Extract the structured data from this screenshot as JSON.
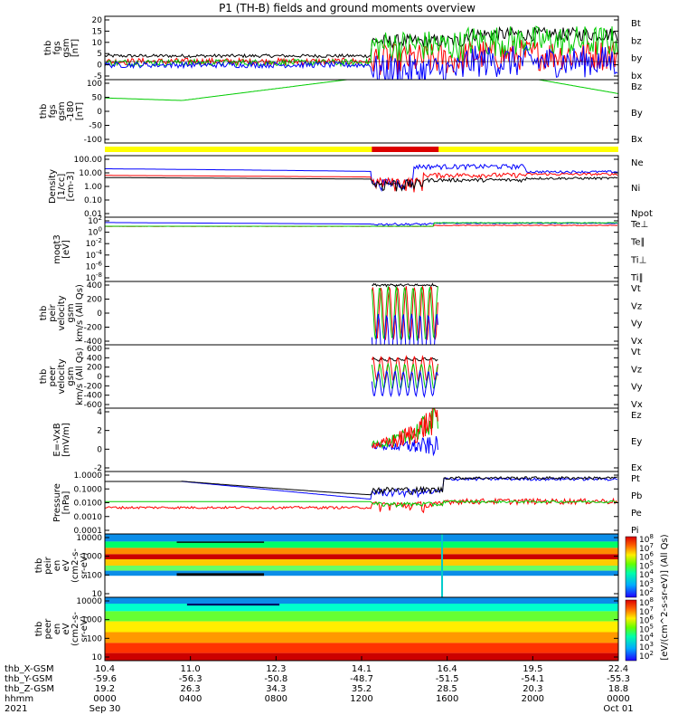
{
  "title": "P1 (TH-B) fields and ground moments overview",
  "colors": {
    "black": "#000000",
    "red": "#ff0000",
    "green": "#00cc00",
    "blue": "#0000ff",
    "yellow": "#ffff00",
    "bar_red": "#dd0000"
  },
  "chart_data": [
    {
      "id": "p1",
      "type": "line",
      "ylabel": [
        "thb",
        "fgs",
        "gsm",
        "[nT]"
      ],
      "yticks": [
        "20",
        "15",
        "10",
        "5",
        "0",
        "-5"
      ],
      "ylim": [
        -8,
        20
      ],
      "series": [
        {
          "name": "Bt",
          "color": "#000000"
        },
        {
          "name": "bz",
          "color": "#ff0000"
        },
        {
          "name": "by",
          "color": "#00cc00"
        },
        {
          "name": "bx",
          "color": "#0000ff"
        }
      ]
    },
    {
      "id": "p2",
      "type": "line",
      "ylabel": [
        "thb",
        "fgs",
        "gsm",
        "-180",
        "[nT]"
      ],
      "yticks": [
        "100",
        "50",
        "0",
        "-50",
        "-100"
      ],
      "ylim": [
        -125,
        100
      ],
      "series": [
        {
          "name": "Bz",
          "color": "#ff0000"
        },
        {
          "name": "By",
          "color": "#00cc00"
        },
        {
          "name": "Bx",
          "color": "#0000ff"
        }
      ]
    },
    {
      "id": "p3",
      "type": "line",
      "ylabel": [
        "Density",
        "[1/cc]",
        "[cm-3]"
      ],
      "yticks": [
        "100.00",
        "10.00",
        "1.00",
        "0.10",
        "0.01"
      ],
      "log": true,
      "series": [
        {
          "name": "Ne",
          "color": "#ff0000"
        },
        {
          "name": "Ni",
          "color": "#000000"
        },
        {
          "name": "Npot",
          "color": "#0000ff"
        }
      ]
    },
    {
      "id": "p4",
      "type": "line",
      "ylabel": [
        "moqt3",
        "[eV]"
      ],
      "yticks": [
        "10^2",
        "10^0",
        "10^-2",
        "10^-4",
        "10^-6",
        "10^-8"
      ],
      "log": true,
      "series": [
        {
          "name": "Te⊥",
          "color": "#ff0000"
        },
        {
          "name": "Te∥",
          "color": "#000000"
        },
        {
          "name": "Ti⊥",
          "color": "#00cc00"
        },
        {
          "name": "Ti∥",
          "color": "#00cc00"
        }
      ]
    },
    {
      "id": "p5",
      "type": "line",
      "ylabel": [
        "thb",
        "peir",
        "velocity",
        "gsm",
        "km/s (All Qs)"
      ],
      "yticks": [
        "400",
        "200",
        "0",
        "-200",
        "-400"
      ],
      "ylim": [
        -420,
        420
      ],
      "series": [
        {
          "name": "Vt",
          "color": "#000000"
        },
        {
          "name": "Vz",
          "color": "#ff0000"
        },
        {
          "name": "Vy",
          "color": "#00cc00"
        },
        {
          "name": "Vx",
          "color": "#0000ff"
        }
      ]
    },
    {
      "id": "p6",
      "type": "line",
      "ylabel": [
        "thb",
        "peer",
        "velocity",
        "gsm",
        "km/s (All Qs)"
      ],
      "yticks": [
        "600",
        "400",
        "200",
        "0",
        "-200",
        "-400",
        "-600"
      ],
      "ylim": [
        -650,
        650
      ],
      "series": [
        {
          "name": "Vt",
          "color": "#000000"
        },
        {
          "name": "Vz",
          "color": "#ff0000"
        },
        {
          "name": "Vy",
          "color": "#00cc00"
        },
        {
          "name": "Vx",
          "color": "#0000ff"
        }
      ]
    },
    {
      "id": "p7",
      "type": "line",
      "ylabel": [
        "E=-VxB",
        "[mV/m]"
      ],
      "yticks": [
        "4",
        "2",
        "0",
        "-2"
      ],
      "ylim": [
        -3,
        5
      ],
      "series": [
        {
          "name": "Ez",
          "color": "#ff0000"
        },
        {
          "name": "Ey",
          "color": "#00cc00"
        },
        {
          "name": "Ex",
          "color": "#0000ff"
        }
      ]
    },
    {
      "id": "p8",
      "type": "line",
      "ylabel": [
        "Pressure",
        "[nPa]"
      ],
      "yticks": [
        "1.0000",
        "0.1000",
        "0.0100",
        "0.0010",
        "0.0001"
      ],
      "log": true,
      "series": [
        {
          "name": "Pt",
          "color": "#000000"
        },
        {
          "name": "Pb",
          "color": "#ff0000"
        },
        {
          "name": "Pe",
          "color": "#00cc00"
        },
        {
          "name": "Pi",
          "color": "#0000ff"
        }
      ]
    },
    {
      "id": "p9",
      "type": "heatmap",
      "ylabel": [
        "thb",
        "peir",
        "en",
        "eV",
        "(cm2-s-",
        "sr-eV)"
      ],
      "yticks": [
        "10000",
        "1000",
        "100",
        "10"
      ],
      "log": true
    },
    {
      "id": "p10",
      "type": "heatmap",
      "ylabel": [
        "thb",
        "peer",
        "en",
        "eV",
        "(cm2-s-",
        "sr-eV)"
      ],
      "yticks": [
        "10000",
        "1000",
        "100",
        "10"
      ],
      "log": true
    }
  ],
  "colorbar": {
    "ticks": [
      "10^8",
      "10^7",
      "10^6",
      "10^5",
      "10^4",
      "10^3",
      "10^2",
      "10^8",
      "10^7",
      "10^6",
      "10^5",
      "10^4",
      "10^3",
      "10^2"
    ],
    "label": "[eV/(cm^2-s-sr-eV)] (All Qs)"
  },
  "xaxis": {
    "row_labels": [
      "thb_X-GSM",
      "thb_Y-GSM",
      "thb_Z-GSM",
      "hhmm",
      "2021"
    ],
    "columns": [
      {
        "x": "10.4",
        "y": "-59.6",
        "z": "19.2",
        "hhmm": "0000",
        "date": "Sep 30"
      },
      {
        "x": "11.0",
        "y": "-56.3",
        "z": "26.3",
        "hhmm": "0400",
        "date": ""
      },
      {
        "x": "12.3",
        "y": "-50.8",
        "z": "34.3",
        "hhmm": "0800",
        "date": ""
      },
      {
        "x": "14.1",
        "y": "-48.7",
        "z": "35.2",
        "hhmm": "1200",
        "date": ""
      },
      {
        "x": "16.4",
        "y": "-51.5",
        "z": "28.5",
        "hhmm": "1600",
        "date": ""
      },
      {
        "x": "19.5",
        "y": "-54.1",
        "z": "20.3",
        "hhmm": "2000",
        "date": ""
      },
      {
        "x": "22.4",
        "y": "-55.3",
        "z": "18.8",
        "hhmm": "0000",
        "date": "Oct 01"
      }
    ]
  }
}
